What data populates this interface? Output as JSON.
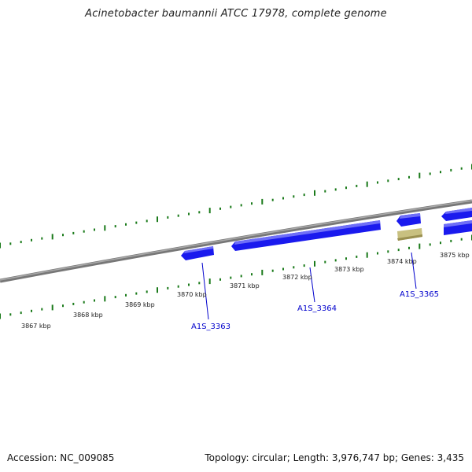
{
  "title": "Acinetobacter baumannii ATCC 17978, complete genome",
  "footer": {
    "accession": "Accession: NC_009085",
    "topology": "Topology: circular; Length: 3,976,747 bp; Genes: 3,435"
  },
  "scale_labels": [
    "3867 kbp",
    "3868 kbp",
    "3869 kbp",
    "3870 kbp",
    "3871 kbp",
    "3872 kbp",
    "3873 kbp",
    "3874 kbp",
    "3875 kbp"
  ],
  "gene_labels": [
    "A1S_3363",
    "A1S_3364",
    "A1S_3365"
  ],
  "colors": {
    "backbone": "#888888",
    "tick": "#1a7a1a",
    "gene": "#1a1aee",
    "gene_highlight": "#6f6ff7",
    "rna": "#c8c080",
    "label": "#0000cc"
  }
}
